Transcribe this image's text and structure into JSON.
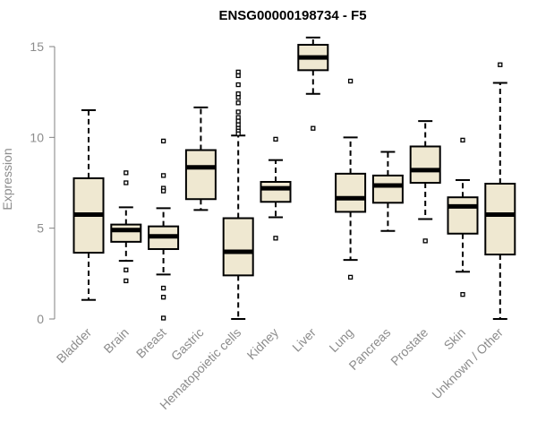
{
  "chart_data": {
    "type": "boxplot",
    "title": "ENSG00000198734 - F5",
    "xlabel": "",
    "ylabel": "Expression",
    "ylim": [
      0,
      15
    ],
    "yticks": [
      0,
      5,
      10,
      15
    ],
    "grid": false,
    "colors": {
      "box_fill": "#efe8d1",
      "stroke": "#000000",
      "axis": "#808080",
      "label": "#8c8c8c"
    },
    "categories": [
      "Bladder",
      "Brain",
      "Breast",
      "Gastric",
      "Hematopoietic cells",
      "Kidney",
      "Liver",
      "Lung",
      "Pancreas",
      "Prostate",
      "Skin",
      "Unknown / Other"
    ],
    "boxes": [
      {
        "category": "Bladder",
        "q1": 3.65,
        "median": 5.75,
        "q3": 7.75,
        "whisker_low": 1.05,
        "whisker_high": 11.5,
        "outliers": []
      },
      {
        "category": "Brain",
        "q1": 4.25,
        "median": 4.9,
        "q3": 5.2,
        "whisker_low": 3.2,
        "whisker_high": 6.15,
        "outliers": [
          7.5,
          8.05,
          2.7,
          2.1
        ]
      },
      {
        "category": "Breast",
        "q1": 3.85,
        "median": 4.55,
        "q3": 5.1,
        "whisker_low": 2.45,
        "whisker_high": 6.1,
        "outliers": [
          9.8,
          7.9,
          7.2,
          7.05,
          1.7,
          1.2,
          0.05
        ]
      },
      {
        "category": "Gastric",
        "q1": 6.6,
        "median": 8.35,
        "q3": 9.3,
        "whisker_low": 6.0,
        "whisker_high": 11.65,
        "outliers": []
      },
      {
        "category": "Hematopoietic cells",
        "q1": 2.4,
        "median": 3.7,
        "q3": 5.55,
        "whisker_low": 0.0,
        "whisker_high": 10.1,
        "outliers": [
          13.6,
          13.4,
          12.9,
          12.4,
          12.2,
          11.9,
          11.4,
          11.1,
          10.9,
          10.7,
          10.5,
          10.35,
          10.2
        ]
      },
      {
        "category": "Kidney",
        "q1": 6.45,
        "median": 7.2,
        "q3": 7.55,
        "whisker_low": 5.6,
        "whisker_high": 8.75,
        "outliers": [
          9.9,
          4.45
        ]
      },
      {
        "category": "Liver",
        "q1": 13.7,
        "median": 14.4,
        "q3": 15.1,
        "whisker_low": 12.4,
        "whisker_high": 15.5,
        "outliers": [
          10.5
        ]
      },
      {
        "category": "Lung",
        "q1": 5.9,
        "median": 6.65,
        "q3": 8.0,
        "whisker_low": 3.25,
        "whisker_high": 10.0,
        "outliers": [
          13.1,
          2.3
        ]
      },
      {
        "category": "Pancreas",
        "q1": 6.4,
        "median": 7.35,
        "q3": 7.9,
        "whisker_low": 4.85,
        "whisker_high": 9.2,
        "outliers": []
      },
      {
        "category": "Prostate",
        "q1": 7.5,
        "median": 8.2,
        "q3": 9.5,
        "whisker_low": 5.5,
        "whisker_high": 10.9,
        "outliers": [
          4.3
        ]
      },
      {
        "category": "Skin",
        "q1": 4.7,
        "median": 6.2,
        "q3": 6.7,
        "whisker_low": 2.6,
        "whisker_high": 7.65,
        "outliers": [
          9.85,
          1.35
        ]
      },
      {
        "category": "Unknown / Other",
        "q1": 3.55,
        "median": 5.75,
        "q3": 7.45,
        "whisker_low": 0.0,
        "whisker_high": 13.0,
        "outliers": [
          14.0
        ]
      }
    ]
  }
}
